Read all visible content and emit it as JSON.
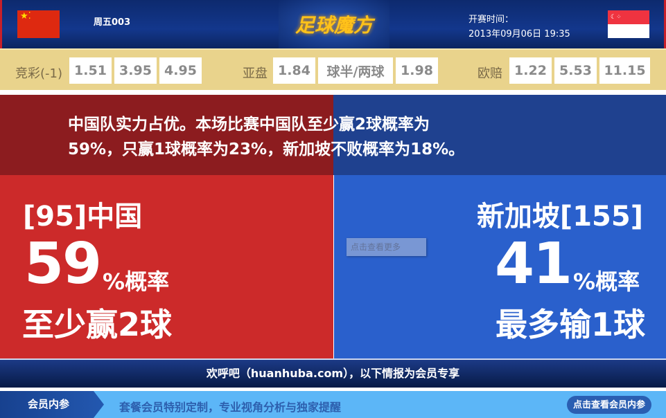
{
  "header": {
    "match_id": "周五003",
    "logo": "足球魔方",
    "time_label": "开赛时间：",
    "time_value": "2013年09月06日 19:35",
    "home_flag": "china-flag",
    "away_flag": "singapore-flag"
  },
  "odds": {
    "jingcai": {
      "label": "竞彩(-1)",
      "values": [
        "1.51",
        "3.95",
        "4.95"
      ]
    },
    "yapan": {
      "label": "亚盘",
      "values": [
        "1.84",
        "球半/两球",
        "1.98"
      ]
    },
    "oupei": {
      "label": "欧赔",
      "values": [
        "1.22",
        "5.53",
        "11.15"
      ]
    }
  },
  "summary": {
    "line1": "中国队实力占优。本场比赛中国队至少赢2球概率为",
    "line2": "59%，只赢1球概率为23%，新加坡不败概率为18%。"
  },
  "home": {
    "name": "[95]中国",
    "pct": "59",
    "pct_suffix": "%概率",
    "outcome": "至少赢2球"
  },
  "away": {
    "name": "新加坡[155]",
    "pct": "41",
    "pct_suffix": "%概率",
    "outcome": "最多输1球"
  },
  "tooltip": "点击查看更多",
  "footer": "欢呼吧（huanhuba.com），以下情报为会员专享",
  "member": {
    "tab": "会员内参",
    "text": "套餐会员特别定制，专业视角分析与独家提醒",
    "button": "点击查看会员内参"
  },
  "colors": {
    "home": "#cc2a2a",
    "away": "#2a60cc",
    "odds_bg": "#e9d38c"
  }
}
